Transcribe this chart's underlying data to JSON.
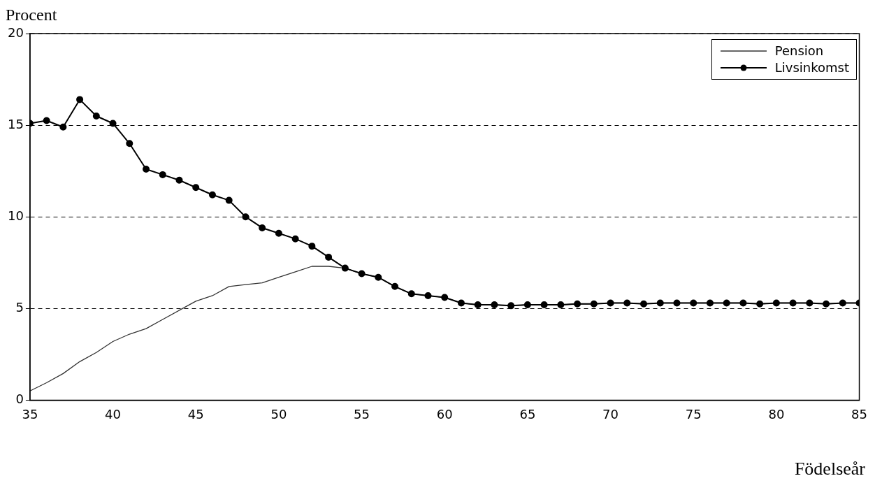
{
  "chart_data": {
    "type": "line",
    "ylabel": "Procent",
    "xlabel": "Födelseår",
    "x": [
      35,
      36,
      37,
      38,
      39,
      40,
      41,
      42,
      43,
      44,
      45,
      46,
      47,
      48,
      49,
      50,
      51,
      52,
      53,
      54,
      55,
      56,
      57,
      58,
      59,
      60,
      61,
      62,
      63,
      64,
      65,
      66,
      67,
      68,
      69,
      70,
      71,
      72,
      73,
      74,
      75,
      76,
      77,
      78,
      79,
      80,
      81,
      82,
      83,
      84,
      85
    ],
    "series": [
      {
        "name": "Pension",
        "color": "#333333",
        "marker": "none",
        "values": [
          0.5,
          0.95,
          1.45,
          2.1,
          2.6,
          3.2,
          3.6,
          3.9,
          4.4,
          4.9,
          5.4,
          5.7,
          6.2,
          6.3,
          6.4,
          6.7,
          7.0,
          7.3,
          7.3,
          7.2,
          6.9,
          6.7,
          6.2,
          5.8,
          5.7,
          5.6,
          5.3,
          5.2,
          5.2,
          5.15,
          5.2,
          5.2,
          5.2,
          5.25,
          5.25,
          5.3,
          5.3,
          5.25,
          5.3,
          5.3,
          5.3,
          5.3,
          5.3,
          5.3,
          5.25,
          5.3,
          5.3,
          5.3,
          5.25,
          5.3,
          5.3
        ]
      },
      {
        "name": "Livsinkomst",
        "color": "#000000",
        "marker": "circle",
        "values": [
          15.1,
          15.25,
          14.9,
          16.4,
          15.5,
          15.1,
          14.0,
          12.6,
          12.3,
          12.0,
          11.6,
          11.2,
          10.9,
          10.0,
          9.4,
          9.1,
          8.8,
          8.4,
          7.8,
          7.2,
          6.9,
          6.7,
          6.2,
          5.8,
          5.7,
          5.6,
          5.3,
          5.2,
          5.2,
          5.15,
          5.2,
          5.2,
          5.2,
          5.25,
          5.25,
          5.3,
          5.3,
          5.25,
          5.3,
          5.3,
          5.3,
          5.3,
          5.3,
          5.3,
          5.25,
          5.3,
          5.3,
          5.3,
          5.25,
          5.3,
          5.3
        ]
      }
    ],
    "xlim": [
      35,
      85
    ],
    "xticks": [
      35,
      40,
      45,
      50,
      55,
      60,
      65,
      70,
      75,
      80,
      85
    ],
    "ylim": [
      0,
      20
    ],
    "yticks": [
      0,
      5,
      10,
      15,
      20
    ],
    "grid": "y",
    "legend": "top right"
  }
}
